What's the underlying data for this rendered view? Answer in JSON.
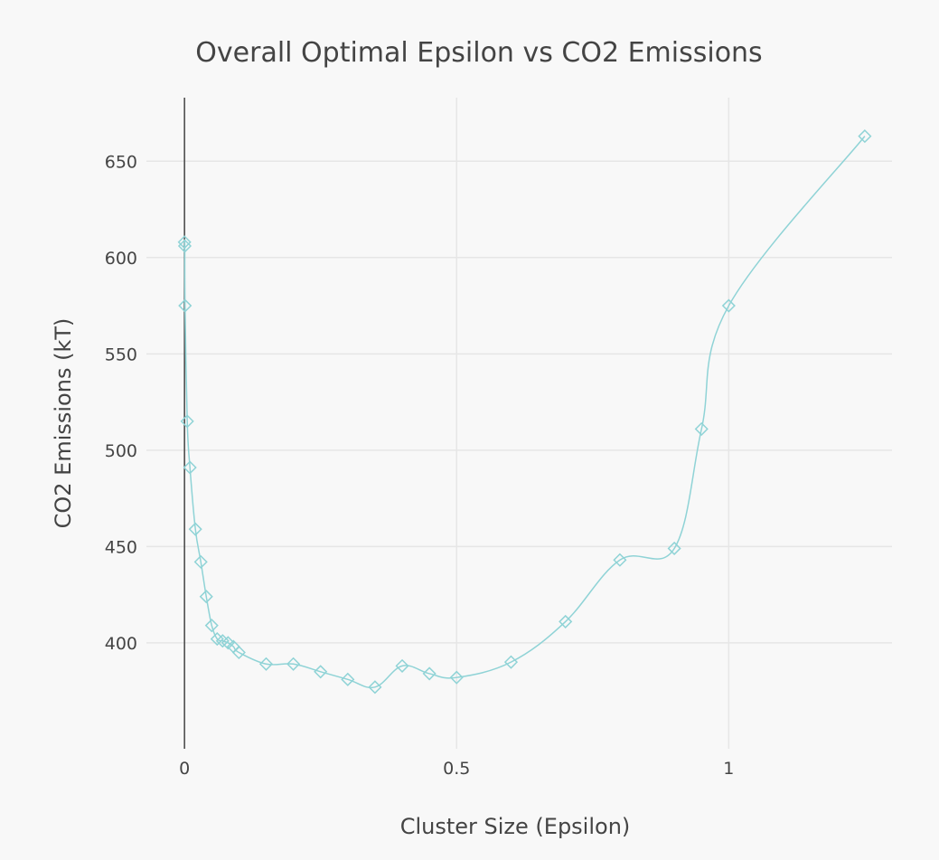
{
  "chart_data": {
    "type": "line",
    "title": "Overall Optimal Epsilon vs CO2 Emissions",
    "xlabel": "Cluster Size (Epsilon)",
    "ylabel": "CO2 Emissions (kT)",
    "xlim": [
      -0.07,
      1.3
    ],
    "ylim": [
      345,
      683
    ],
    "x_ticks": [
      0,
      0.5,
      1
    ],
    "x_tick_labels": [
      "0",
      "0.5",
      "1"
    ],
    "y_ticks": [
      400,
      450,
      500,
      550,
      600,
      650
    ],
    "y_tick_labels": [
      "400",
      "450",
      "500",
      "550",
      "600",
      "650"
    ],
    "grid": true,
    "legend": "none",
    "line_color": "#8fd3d6",
    "marker": "diamond-open",
    "series": [
      {
        "x": [
          0,
          0.0005,
          0.001,
          0.005,
          0.01,
          0.02,
          0.03,
          0.04,
          0.05,
          0.06,
          0.07,
          0.08,
          0.09,
          0.1,
          0.15,
          0.2,
          0.25,
          0.3,
          0.35,
          0.4,
          0.45,
          0.5,
          0.6,
          0.7,
          0.8,
          0.9,
          0.95,
          1,
          1.25
        ],
        "y": [
          608,
          606,
          575,
          515,
          491,
          459,
          442,
          424,
          409,
          402,
          401,
          400,
          398,
          395,
          389,
          389,
          385,
          381,
          377,
          388,
          384,
          382,
          390,
          411,
          443,
          449,
          511,
          575,
          663
        ]
      }
    ]
  }
}
